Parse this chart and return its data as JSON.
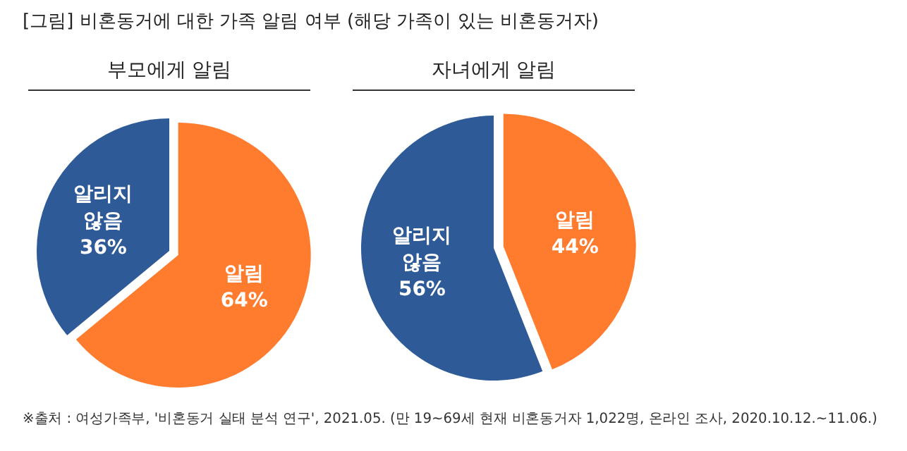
{
  "chart_data": [
    {
      "type": "pie",
      "title": "[그림] 비혼동거에 대한 가족 알림 여부 (해당 가족이 있는 비혼동거자)",
      "subtitle": "부모에게 알림",
      "categories": [
        "알림",
        "알리지 않음"
      ],
      "values": [
        64,
        36
      ],
      "colors": [
        "#ff7b2e",
        "#2e5a97"
      ],
      "value_labels": [
        "64%",
        "36%"
      ]
    },
    {
      "type": "pie",
      "subtitle": "자녀에게 알림",
      "categories": [
        "알림",
        "알리지 않음"
      ],
      "values": [
        44,
        56
      ],
      "colors": [
        "#ff7b2e",
        "#2e5a97"
      ],
      "value_labels": [
        "44%",
        "56%"
      ],
      "annotations": [
        "※출처 : 여성가족부, '비혼동거 실태 분석 연구', 2021.05. (만 19~69세 현재 비혼동거자 1,022명, 온라인 조사, 2020.10.12.~11.06.)"
      ]
    }
  ]
}
